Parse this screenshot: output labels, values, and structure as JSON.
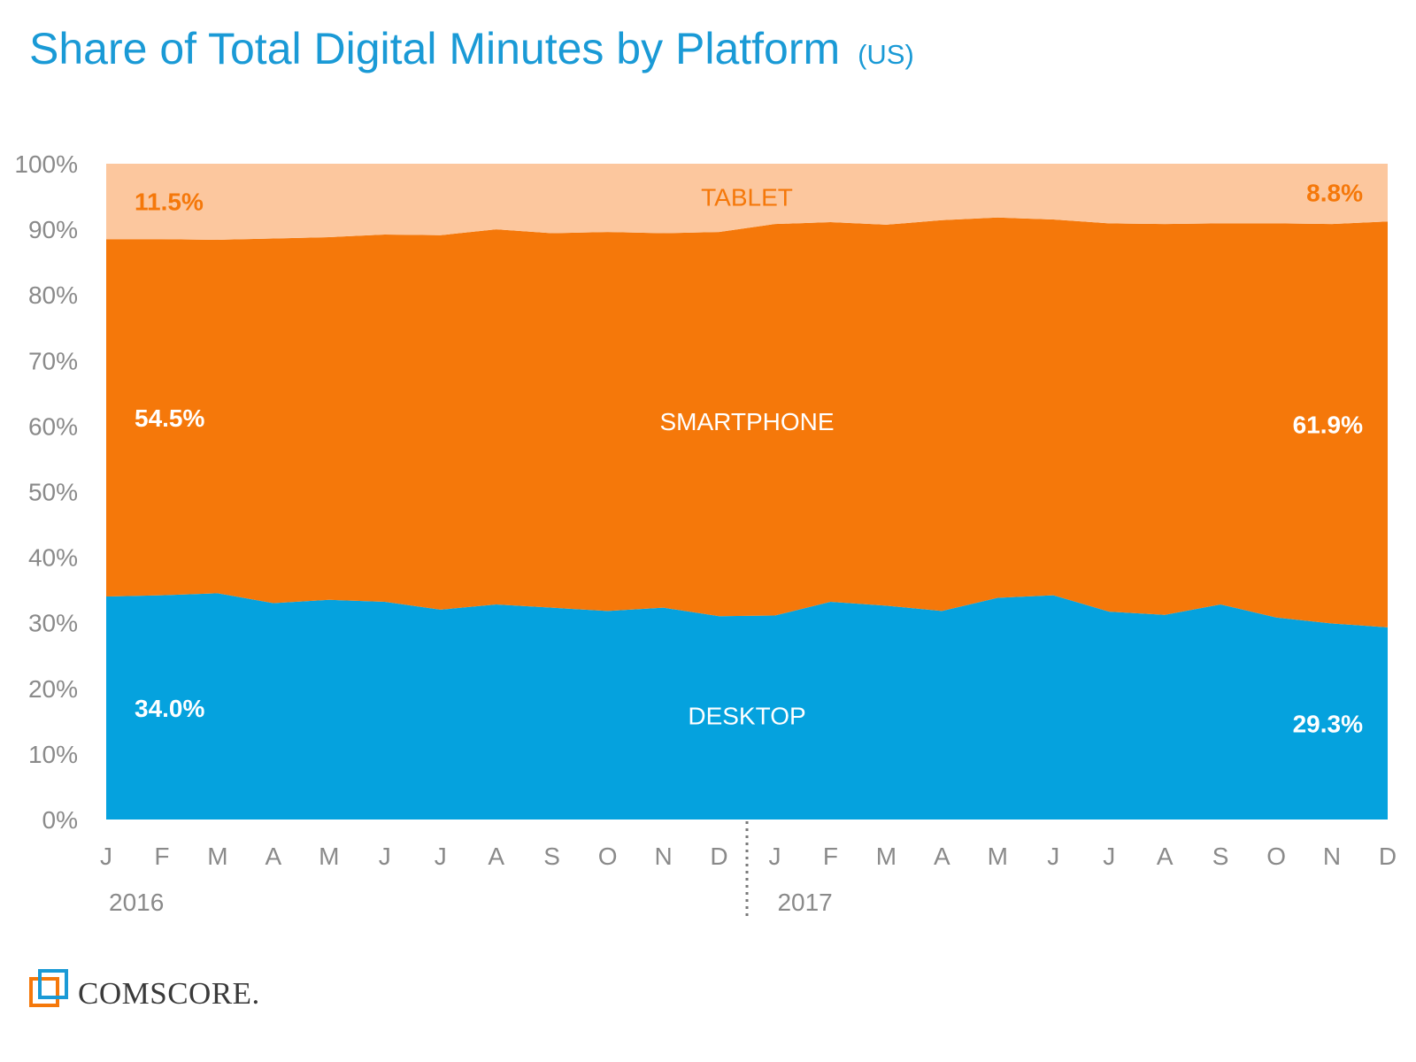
{
  "title": "Share of Total Digital Minutes by Platform",
  "title_suffix": "(US)",
  "brand": "comScore",
  "brand_display": "COMSCORE.",
  "chart_data": {
    "type": "area",
    "stacked": true,
    "x": [
      "J",
      "F",
      "M",
      "A",
      "M",
      "J",
      "J",
      "A",
      "S",
      "O",
      "N",
      "D",
      "J",
      "F",
      "M",
      "A",
      "M",
      "J",
      "J",
      "A",
      "S",
      "O",
      "N",
      "D"
    ],
    "year_labels": [
      {
        "label": "2016",
        "index": 0
      },
      {
        "label": "2017",
        "index": 12
      }
    ],
    "ylim": [
      0,
      100
    ],
    "yticks": [
      "0%",
      "10%",
      "20%",
      "30%",
      "40%",
      "50%",
      "60%",
      "70%",
      "80%",
      "90%",
      "100%"
    ],
    "series": [
      {
        "name": "DESKTOP",
        "color": "#05a2de",
        "values": [
          34.0,
          34.2,
          34.5,
          33.0,
          33.5,
          33.2,
          32.0,
          32.8,
          32.3,
          31.8,
          32.3,
          31.0,
          31.1,
          33.2,
          32.6,
          31.8,
          33.8,
          34.2,
          31.7,
          31.2,
          32.8,
          30.8,
          29.9,
          29.3
        ],
        "start_label": "34.0%",
        "end_label": "29.3%",
        "label_color": "#ffffff"
      },
      {
        "name": "SMARTPHONE",
        "color": "#f5780a",
        "values": [
          54.5,
          54.3,
          53.9,
          55.6,
          55.3,
          56.0,
          57.1,
          57.2,
          57.1,
          57.8,
          57.1,
          58.6,
          59.7,
          57.9,
          58.1,
          59.6,
          58.0,
          57.3,
          59.2,
          59.6,
          58.1,
          60.1,
          60.9,
          61.9
        ],
        "start_label": "54.5%",
        "end_label": "61.9%",
        "label_color": "#ffffff"
      },
      {
        "name": "TABLET",
        "color": "#fcc79e",
        "values": [
          11.5,
          11.5,
          11.6,
          11.4,
          11.2,
          10.8,
          10.9,
          10.0,
          10.6,
          10.4,
          10.6,
          10.4,
          9.2,
          8.9,
          9.3,
          8.6,
          8.2,
          8.5,
          9.1,
          9.2,
          9.1,
          9.1,
          9.2,
          8.8
        ],
        "start_label": "11.5%",
        "end_label": "8.8%",
        "label_color": "#f5780a"
      }
    ],
    "year_divider_after": 11,
    "grid": false,
    "legend": "none"
  }
}
